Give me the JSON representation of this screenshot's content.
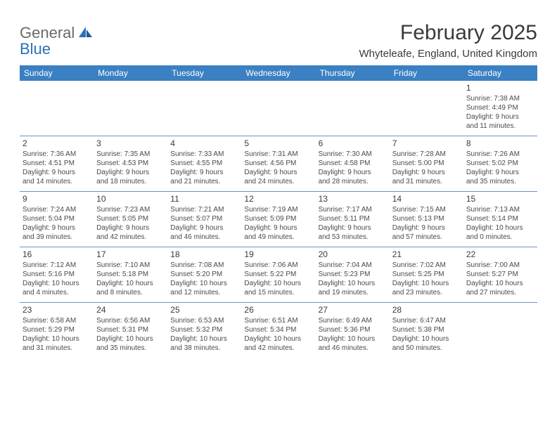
{
  "logo": {
    "text1": "General",
    "text2": "Blue"
  },
  "title": "February 2025",
  "location": "Whyteleafe, England, United Kingdom",
  "colors": {
    "header_bg": "#3a80c2",
    "row_border": "#6b94bf",
    "text_gray": "#4a4a4a",
    "logo_blue": "#2a71b8"
  },
  "dayHeaders": [
    "Sunday",
    "Monday",
    "Tuesday",
    "Wednesday",
    "Thursday",
    "Friday",
    "Saturday"
  ],
  "weeks": [
    [
      {
        "n": "",
        "sr": "",
        "ss": "",
        "dl1": "",
        "dl2": ""
      },
      {
        "n": "",
        "sr": "",
        "ss": "",
        "dl1": "",
        "dl2": ""
      },
      {
        "n": "",
        "sr": "",
        "ss": "",
        "dl1": "",
        "dl2": ""
      },
      {
        "n": "",
        "sr": "",
        "ss": "",
        "dl1": "",
        "dl2": ""
      },
      {
        "n": "",
        "sr": "",
        "ss": "",
        "dl1": "",
        "dl2": ""
      },
      {
        "n": "",
        "sr": "",
        "ss": "",
        "dl1": "",
        "dl2": ""
      },
      {
        "n": "1",
        "sr": "Sunrise: 7:38 AM",
        "ss": "Sunset: 4:49 PM",
        "dl1": "Daylight: 9 hours",
        "dl2": "and 11 minutes."
      }
    ],
    [
      {
        "n": "2",
        "sr": "Sunrise: 7:36 AM",
        "ss": "Sunset: 4:51 PM",
        "dl1": "Daylight: 9 hours",
        "dl2": "and 14 minutes."
      },
      {
        "n": "3",
        "sr": "Sunrise: 7:35 AM",
        "ss": "Sunset: 4:53 PM",
        "dl1": "Daylight: 9 hours",
        "dl2": "and 18 minutes."
      },
      {
        "n": "4",
        "sr": "Sunrise: 7:33 AM",
        "ss": "Sunset: 4:55 PM",
        "dl1": "Daylight: 9 hours",
        "dl2": "and 21 minutes."
      },
      {
        "n": "5",
        "sr": "Sunrise: 7:31 AM",
        "ss": "Sunset: 4:56 PM",
        "dl1": "Daylight: 9 hours",
        "dl2": "and 24 minutes."
      },
      {
        "n": "6",
        "sr": "Sunrise: 7:30 AM",
        "ss": "Sunset: 4:58 PM",
        "dl1": "Daylight: 9 hours",
        "dl2": "and 28 minutes."
      },
      {
        "n": "7",
        "sr": "Sunrise: 7:28 AM",
        "ss": "Sunset: 5:00 PM",
        "dl1": "Daylight: 9 hours",
        "dl2": "and 31 minutes."
      },
      {
        "n": "8",
        "sr": "Sunrise: 7:26 AM",
        "ss": "Sunset: 5:02 PM",
        "dl1": "Daylight: 9 hours",
        "dl2": "and 35 minutes."
      }
    ],
    [
      {
        "n": "9",
        "sr": "Sunrise: 7:24 AM",
        "ss": "Sunset: 5:04 PM",
        "dl1": "Daylight: 9 hours",
        "dl2": "and 39 minutes."
      },
      {
        "n": "10",
        "sr": "Sunrise: 7:23 AM",
        "ss": "Sunset: 5:05 PM",
        "dl1": "Daylight: 9 hours",
        "dl2": "and 42 minutes."
      },
      {
        "n": "11",
        "sr": "Sunrise: 7:21 AM",
        "ss": "Sunset: 5:07 PM",
        "dl1": "Daylight: 9 hours",
        "dl2": "and 46 minutes."
      },
      {
        "n": "12",
        "sr": "Sunrise: 7:19 AM",
        "ss": "Sunset: 5:09 PM",
        "dl1": "Daylight: 9 hours",
        "dl2": "and 49 minutes."
      },
      {
        "n": "13",
        "sr": "Sunrise: 7:17 AM",
        "ss": "Sunset: 5:11 PM",
        "dl1": "Daylight: 9 hours",
        "dl2": "and 53 minutes."
      },
      {
        "n": "14",
        "sr": "Sunrise: 7:15 AM",
        "ss": "Sunset: 5:13 PM",
        "dl1": "Daylight: 9 hours",
        "dl2": "and 57 minutes."
      },
      {
        "n": "15",
        "sr": "Sunrise: 7:13 AM",
        "ss": "Sunset: 5:14 PM",
        "dl1": "Daylight: 10 hours",
        "dl2": "and 0 minutes."
      }
    ],
    [
      {
        "n": "16",
        "sr": "Sunrise: 7:12 AM",
        "ss": "Sunset: 5:16 PM",
        "dl1": "Daylight: 10 hours",
        "dl2": "and 4 minutes."
      },
      {
        "n": "17",
        "sr": "Sunrise: 7:10 AM",
        "ss": "Sunset: 5:18 PM",
        "dl1": "Daylight: 10 hours",
        "dl2": "and 8 minutes."
      },
      {
        "n": "18",
        "sr": "Sunrise: 7:08 AM",
        "ss": "Sunset: 5:20 PM",
        "dl1": "Daylight: 10 hours",
        "dl2": "and 12 minutes."
      },
      {
        "n": "19",
        "sr": "Sunrise: 7:06 AM",
        "ss": "Sunset: 5:22 PM",
        "dl1": "Daylight: 10 hours",
        "dl2": "and 15 minutes."
      },
      {
        "n": "20",
        "sr": "Sunrise: 7:04 AM",
        "ss": "Sunset: 5:23 PM",
        "dl1": "Daylight: 10 hours",
        "dl2": "and 19 minutes."
      },
      {
        "n": "21",
        "sr": "Sunrise: 7:02 AM",
        "ss": "Sunset: 5:25 PM",
        "dl1": "Daylight: 10 hours",
        "dl2": "and 23 minutes."
      },
      {
        "n": "22",
        "sr": "Sunrise: 7:00 AM",
        "ss": "Sunset: 5:27 PM",
        "dl1": "Daylight: 10 hours",
        "dl2": "and 27 minutes."
      }
    ],
    [
      {
        "n": "23",
        "sr": "Sunrise: 6:58 AM",
        "ss": "Sunset: 5:29 PM",
        "dl1": "Daylight: 10 hours",
        "dl2": "and 31 minutes."
      },
      {
        "n": "24",
        "sr": "Sunrise: 6:56 AM",
        "ss": "Sunset: 5:31 PM",
        "dl1": "Daylight: 10 hours",
        "dl2": "and 35 minutes."
      },
      {
        "n": "25",
        "sr": "Sunrise: 6:53 AM",
        "ss": "Sunset: 5:32 PM",
        "dl1": "Daylight: 10 hours",
        "dl2": "and 38 minutes."
      },
      {
        "n": "26",
        "sr": "Sunrise: 6:51 AM",
        "ss": "Sunset: 5:34 PM",
        "dl1": "Daylight: 10 hours",
        "dl2": "and 42 minutes."
      },
      {
        "n": "27",
        "sr": "Sunrise: 6:49 AM",
        "ss": "Sunset: 5:36 PM",
        "dl1": "Daylight: 10 hours",
        "dl2": "and 46 minutes."
      },
      {
        "n": "28",
        "sr": "Sunrise: 6:47 AM",
        "ss": "Sunset: 5:38 PM",
        "dl1": "Daylight: 10 hours",
        "dl2": "and 50 minutes."
      },
      {
        "n": "",
        "sr": "",
        "ss": "",
        "dl1": "",
        "dl2": ""
      }
    ]
  ]
}
